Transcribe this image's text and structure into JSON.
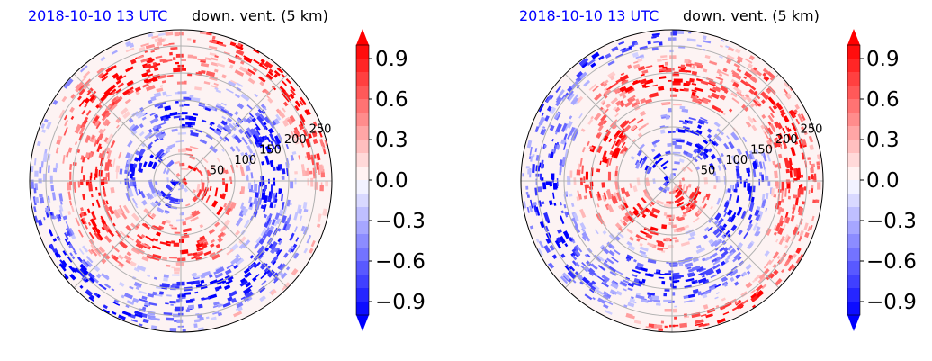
{
  "panels": [
    {
      "title_left": "2018-10-10 13 UTC",
      "title_right": "down. vent. (5 km)"
    },
    {
      "title_left": "2018-10-10 13 UTC",
      "title_right": "down. vent. (5 km)"
    }
  ],
  "colors": {
    "title_left": "#0000ff",
    "positive": "#ff0000",
    "negative": "#0000ff",
    "grid": "#b0b0b0"
  },
  "chart_data": [
    {
      "type": "heatmap",
      "projection": "polar",
      "radial_ticks": [
        "50",
        "100",
        "150",
        "200",
        "250"
      ],
      "radial_values": [
        50,
        100,
        150,
        200,
        250
      ],
      "r_max": 280,
      "angular_gridlines_deg": [
        0,
        45,
        90,
        135,
        180,
        225,
        270,
        315
      ],
      "grid": true,
      "colorbar": {
        "ticks": [
          "0.9",
          "0.6",
          "0.3",
          "0.0",
          "−0.3",
          "−0.6",
          "−0.9"
        ],
        "tick_values": [
          0.9,
          0.6,
          0.3,
          0.0,
          -0.3,
          -0.6,
          -0.9
        ],
        "range": [
          -1.0,
          1.0
        ],
        "extend": "both",
        "cmap": "bwr"
      }
    },
    {
      "type": "heatmap",
      "projection": "polar",
      "radial_ticks": [
        "50",
        "100",
        "150",
        "200",
        "250"
      ],
      "radial_values": [
        50,
        100,
        150,
        200,
        250
      ],
      "r_max": 280,
      "angular_gridlines_deg": [
        0,
        45,
        90,
        135,
        180,
        225,
        270,
        315
      ],
      "grid": true,
      "colorbar": {
        "ticks": [
          "0.9",
          "0.6",
          "0.3",
          "0.0",
          "−0.3",
          "−0.6",
          "−0.9"
        ],
        "tick_values": [
          0.9,
          0.6,
          0.3,
          0.0,
          -0.3,
          -0.6,
          -0.9
        ],
        "range": [
          -1.0,
          1.0
        ],
        "extend": "both",
        "cmap": "bwr"
      }
    }
  ]
}
